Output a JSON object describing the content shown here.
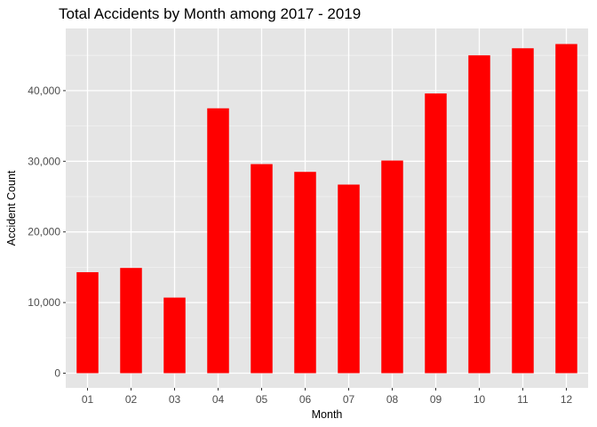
{
  "chart_data": {
    "type": "bar",
    "title": "Total Accidents by Month among 2017 - 2019",
    "xlabel": "Month",
    "ylabel": "Accident Count",
    "categories": [
      "01",
      "02",
      "03",
      "04",
      "05",
      "06",
      "07",
      "08",
      "09",
      "10",
      "11",
      "12"
    ],
    "values": [
      14300,
      14900,
      10700,
      37500,
      29600,
      28500,
      26700,
      30100,
      39600,
      45000,
      46000,
      46600
    ],
    "ylim": [
      0,
      47000
    ],
    "yticks": [
      0,
      10000,
      20000,
      30000,
      40000
    ],
    "ytick_labels": [
      "0",
      "10,000",
      "20,000",
      "30,000",
      "40,000"
    ],
    "grid": true,
    "bar_color": "#ff0000",
    "panel_color": "#e5e5e5"
  }
}
